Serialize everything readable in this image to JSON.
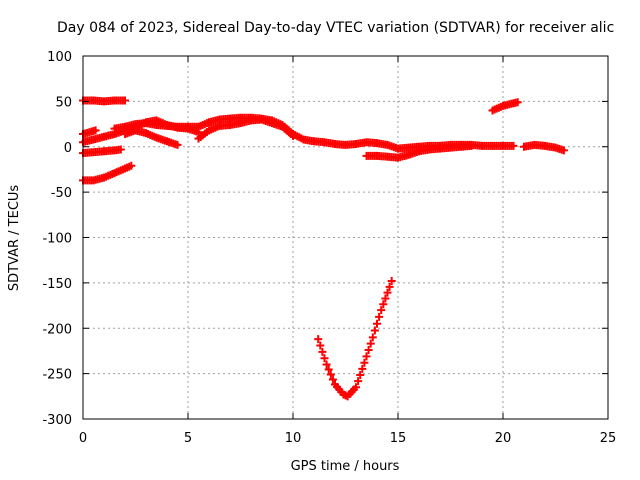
{
  "chart_data": {
    "type": "scatter",
    "title": "Day 084 of 2023, Sidereal Day-to-day VTEC variation (SDTVAR) for receiver alic",
    "xlabel": "GPS time / hours",
    "ylabel": "SDTVAR / TECUs",
    "xlim": [
      0,
      25
    ],
    "ylim": [
      -300,
      100
    ],
    "xticks": [
      0,
      5,
      10,
      15,
      20,
      25
    ],
    "yticks": [
      100,
      50,
      0,
      -50,
      -100,
      -150,
      -200,
      -250,
      -300
    ],
    "grid": true,
    "marker": "plus",
    "color": "#ff0000",
    "series": [
      {
        "name": "s1",
        "points": [
          [
            0.0,
            51
          ],
          [
            0.5,
            51
          ],
          [
            1.0,
            50
          ],
          [
            1.5,
            51
          ],
          [
            2.0,
            51
          ]
        ]
      },
      {
        "name": "s2",
        "points": [
          [
            0.0,
            14
          ],
          [
            0.3,
            16
          ],
          [
            0.6,
            18
          ]
        ]
      },
      {
        "name": "s3",
        "points": [
          [
            0.0,
            -7
          ],
          [
            0.5,
            -6
          ],
          [
            1.0,
            -5
          ],
          [
            1.5,
            -4
          ],
          [
            1.8,
            -3
          ]
        ]
      },
      {
        "name": "s4",
        "points": [
          [
            0.0,
            -37
          ],
          [
            0.5,
            -37
          ],
          [
            1.0,
            -34
          ],
          [
            1.5,
            -29
          ],
          [
            2.0,
            -24
          ],
          [
            2.3,
            -21
          ]
        ]
      },
      {
        "name": "s5",
        "points": [
          [
            0.0,
            5
          ],
          [
            0.5,
            8
          ],
          [
            1.0,
            11
          ],
          [
            1.5,
            14
          ],
          [
            2.0,
            18
          ],
          [
            2.5,
            22
          ],
          [
            3.0,
            27
          ],
          [
            3.5,
            29
          ],
          [
            4.0,
            24
          ],
          [
            4.5,
            21
          ],
          [
            5.0,
            20
          ],
          [
            5.5,
            16
          ]
        ]
      },
      {
        "name": "s6",
        "points": [
          [
            1.5,
            20
          ],
          [
            2.0,
            22
          ],
          [
            2.5,
            25
          ],
          [
            3.0,
            26
          ],
          [
            3.5,
            24
          ],
          [
            4.0,
            23
          ],
          [
            4.5,
            22
          ],
          [
            5.0,
            22
          ],
          [
            5.5,
            22
          ],
          [
            6.0,
            27
          ],
          [
            6.5,
            30
          ],
          [
            7.0,
            31
          ],
          [
            7.5,
            32
          ],
          [
            8.0,
            32
          ],
          [
            8.5,
            31
          ],
          [
            9.0,
            29
          ],
          [
            9.5,
            24
          ],
          [
            10.0,
            14
          ],
          [
            10.5,
            8
          ],
          [
            11.0,
            6
          ],
          [
            11.5,
            5
          ],
          [
            12.0,
            3
          ],
          [
            12.5,
            2
          ],
          [
            13.0,
            3
          ],
          [
            13.5,
            5
          ],
          [
            14.0,
            4
          ],
          [
            14.5,
            2
          ],
          [
            15.0,
            -2
          ],
          [
            15.5,
            -1
          ],
          [
            16.0,
            0
          ],
          [
            16.5,
            1
          ],
          [
            17.0,
            1
          ],
          [
            17.5,
            2
          ],
          [
            18.0,
            2
          ],
          [
            18.5,
            2
          ],
          [
            19.0,
            1
          ],
          [
            19.5,
            1
          ],
          [
            20.0,
            1
          ],
          [
            20.5,
            1
          ]
        ]
      },
      {
        "name": "s7",
        "points": [
          [
            2.0,
            14
          ],
          [
            2.5,
            18
          ],
          [
            3.0,
            15
          ],
          [
            3.5,
            10
          ],
          [
            4.0,
            6
          ],
          [
            4.5,
            2
          ]
        ]
      },
      {
        "name": "s8",
        "points": [
          [
            5.5,
            9
          ],
          [
            6.0,
            18
          ],
          [
            6.5,
            23
          ],
          [
            7.0,
            24
          ],
          [
            7.5,
            26
          ],
          [
            8.0,
            29
          ],
          [
            8.5,
            30
          ],
          [
            9.0,
            26
          ],
          [
            9.5,
            22
          ],
          [
            10.0,
            12
          ]
        ]
      },
      {
        "name": "s9",
        "points": [
          [
            13.5,
            -10
          ],
          [
            14.0,
            -10
          ],
          [
            14.5,
            -11
          ],
          [
            15.0,
            -12
          ],
          [
            15.5,
            -9
          ],
          [
            16.0,
            -5
          ],
          [
            16.5,
            -3
          ],
          [
            17.0,
            -2
          ],
          [
            17.5,
            -1
          ],
          [
            18.0,
            0
          ],
          [
            18.5,
            1
          ]
        ]
      },
      {
        "name": "s10",
        "points": [
          [
            19.5,
            40
          ],
          [
            20.0,
            45
          ],
          [
            20.5,
            48
          ],
          [
            20.7,
            49
          ]
        ]
      },
      {
        "name": "s11",
        "points": [
          [
            21.0,
            0
          ],
          [
            21.5,
            2
          ],
          [
            22.0,
            1
          ],
          [
            22.5,
            -1
          ],
          [
            22.9,
            -4
          ]
        ]
      },
      {
        "name": "s12",
        "points": [
          [
            11.2,
            -212
          ],
          [
            11.6,
            -240
          ],
          [
            12.0,
            -262
          ],
          [
            12.4,
            -273
          ],
          [
            12.6,
            -275
          ],
          [
            13.0,
            -265
          ],
          [
            13.4,
            -238
          ],
          [
            13.8,
            -210
          ],
          [
            14.2,
            -180
          ],
          [
            14.7,
            -148
          ]
        ]
      }
    ]
  }
}
